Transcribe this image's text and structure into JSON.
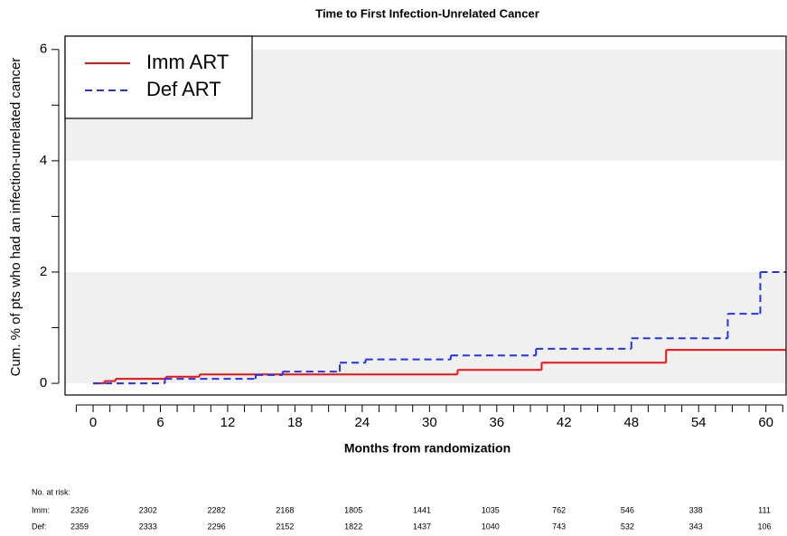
{
  "chart_data": {
    "type": "step",
    "title": "Time to First Infection-Unrelated Cancer",
    "xlabel": "Months from randomization",
    "ylabel": "Cum. % of pts who had an  infection-unrelated  cancer",
    "xlim": [
      -2.5,
      61.8
    ],
    "ylim": [
      -0.21,
      6.24
    ],
    "xticks": [
      0,
      6,
      12,
      18,
      24,
      30,
      36,
      42,
      48,
      54,
      60
    ],
    "xminorticks": [
      -1.5,
      1.5,
      3,
      4.5,
      7.5,
      9,
      10.5,
      13.5,
      15,
      16.5,
      19.5,
      21,
      22.5,
      25.5,
      27,
      28.5,
      31.5,
      33,
      34.5,
      37.5,
      39,
      40.5,
      43.5,
      45,
      46.5,
      49.5,
      51,
      52.5,
      55.5,
      57,
      58.5,
      61.5
    ],
    "yticks": [
      0,
      2,
      4,
      6
    ],
    "yminorticks": [
      1,
      3,
      5
    ],
    "bands": [
      [
        0,
        2
      ],
      [
        4,
        6
      ]
    ],
    "band_color": "#f0f0f0",
    "legend": "top-left",
    "series": [
      {
        "name": "Imm ART",
        "color": "#ee1111",
        "dash": false,
        "x": [
          0,
          1,
          2,
          6.5,
          9.5,
          32.5,
          40,
          51.1
        ],
        "values": [
          0,
          0.04,
          0.08,
          0.12,
          0.16,
          0.24,
          0.37,
          0.6
        ]
      },
      {
        "name": "Def ART",
        "color": "#2233ee",
        "dash": true,
        "x": [
          0,
          6.4,
          14.5,
          16.9,
          22,
          24.3,
          31.9,
          39.5,
          48,
          56.6,
          59.5
        ],
        "values": [
          0,
          0.08,
          0.15,
          0.21,
          0.37,
          0.43,
          0.5,
          0.62,
          0.81,
          1.25,
          2.0
        ]
      }
    ],
    "risk_table": {
      "title": "No. at risk:",
      "rows": [
        {
          "label": "Imm:",
          "values": [
            "2326",
            "2302",
            "2282",
            "2168",
            "1805",
            "1441",
            "1035",
            "762",
            "546",
            "338",
            "111"
          ]
        },
        {
          "label": "Def:",
          "values": [
            "2359",
            "2333",
            "2296",
            "2152",
            "1822",
            "1437",
            "1040",
            "743",
            "532",
            "343",
            "106"
          ]
        }
      ]
    }
  }
}
